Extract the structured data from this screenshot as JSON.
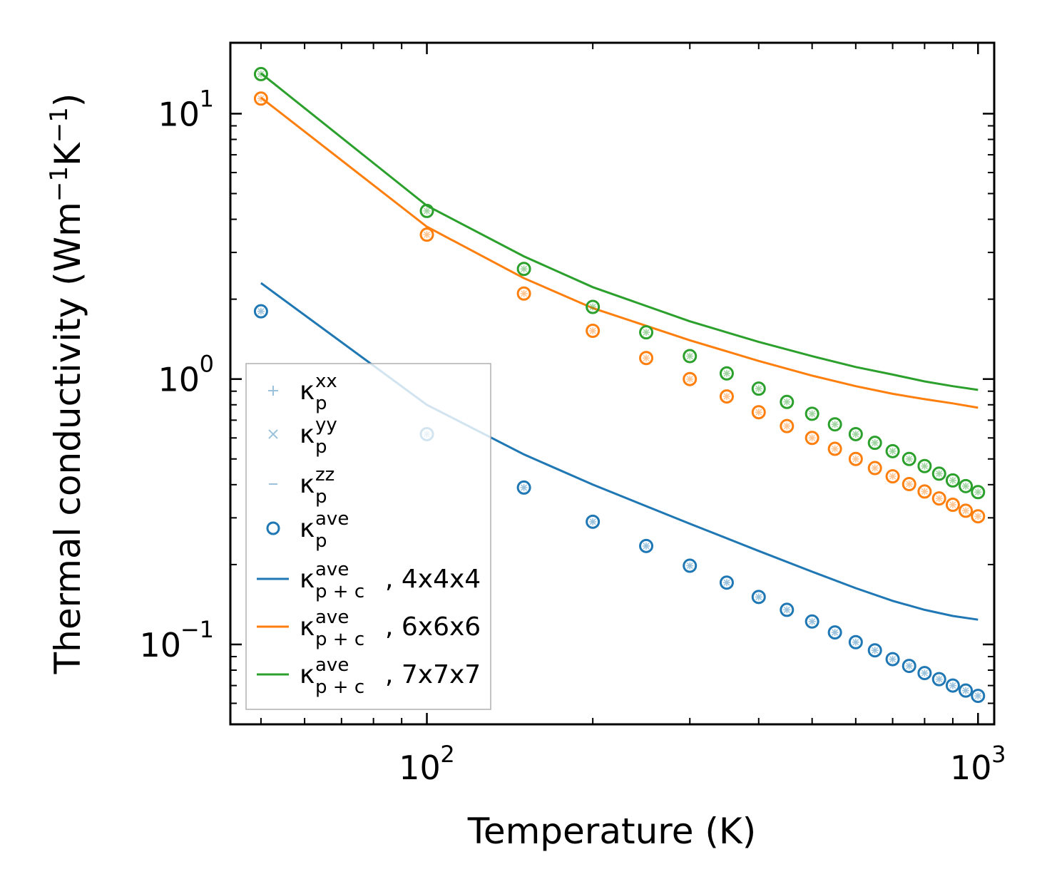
{
  "chart_data": {
    "type": "scatter",
    "xscale": "log",
    "yscale": "log",
    "xlabel": "Temperature (K)",
    "ylabel": "Thermal conductivity (Wm−1K−1)",
    "ylabel_parts": [
      "Thermal conductivity (Wm",
      "−1",
      "K",
      "−1",
      ")"
    ],
    "xlim": [
      44,
      1070
    ],
    "ylim": [
      0.05,
      18.5
    ],
    "x_ticks": [
      {
        "value": 100,
        "base": "10",
        "exp": "2"
      },
      {
        "value": 1000,
        "base": "10",
        "exp": "3"
      }
    ],
    "y_ticks": [
      {
        "value": 0.1,
        "base": "10",
        "exp": "−1"
      },
      {
        "value": 1,
        "base": "10",
        "exp": "0"
      },
      {
        "value": 10,
        "base": "10",
        "exp": "1"
      }
    ],
    "x": [
      50,
      100,
      150,
      200,
      250,
      300,
      350,
      400,
      450,
      500,
      550,
      600,
      650,
      700,
      750,
      800,
      850,
      900,
      950,
      1000
    ],
    "series": [
      {
        "name": "4x4x4",
        "color": "#1f77b4",
        "points": [
          1.8,
          0.62,
          0.39,
          0.29,
          0.235,
          0.198,
          0.171,
          0.151,
          0.135,
          0.122,
          0.111,
          0.102,
          0.095,
          0.088,
          0.083,
          0.078,
          0.074,
          0.07,
          0.067,
          0.064
        ],
        "line_x": [
          50,
          100,
          150,
          200,
          300,
          400,
          500,
          600,
          700,
          800,
          900,
          1000
        ],
        "line": [
          2.3,
          0.8,
          0.52,
          0.4,
          0.285,
          0.225,
          0.188,
          0.163,
          0.146,
          0.135,
          0.128,
          0.124
        ]
      },
      {
        "name": "6x6x6",
        "color": "#ff7f0e",
        "points": [
          11.4,
          3.5,
          2.1,
          1.52,
          1.2,
          1.0,
          0.86,
          0.75,
          0.665,
          0.6,
          0.546,
          0.5,
          0.462,
          0.43,
          0.402,
          0.377,
          0.355,
          0.336,
          0.319,
          0.304
        ],
        "line_x": [
          50,
          100,
          150,
          200,
          300,
          400,
          500,
          600,
          700,
          800,
          900,
          1000
        ],
        "line": [
          11.5,
          3.75,
          2.4,
          1.85,
          1.4,
          1.17,
          1.03,
          0.94,
          0.88,
          0.84,
          0.81,
          0.78
        ]
      },
      {
        "name": "7x7x7",
        "color": "#2ca02c",
        "points": [
          14.1,
          4.3,
          2.6,
          1.87,
          1.5,
          1.22,
          1.05,
          0.92,
          0.82,
          0.74,
          0.675,
          0.62,
          0.575,
          0.535,
          0.5,
          0.47,
          0.44,
          0.415,
          0.395,
          0.375
        ],
        "line_x": [
          50,
          100,
          150,
          200,
          300,
          400,
          500,
          600,
          700,
          800,
          900,
          1000
        ],
        "line": [
          14.2,
          4.5,
          2.9,
          2.22,
          1.65,
          1.38,
          1.22,
          1.11,
          1.04,
          0.98,
          0.94,
          0.91
        ]
      }
    ],
    "legend": {
      "placement": "lower-left",
      "entries": [
        {
          "marker": "+",
          "sym": "κ",
          "sub": "p",
          "sup": "xx",
          "suffix": ""
        },
        {
          "marker": "×",
          "sym": "κ",
          "sub": "p",
          "sup": "yy",
          "suffix": ""
        },
        {
          "marker": "−",
          "sym": "κ",
          "sub": "p",
          "sup": "zz",
          "suffix": ""
        },
        {
          "marker": "o",
          "sym": "κ",
          "sub": "p",
          "sup": "ave",
          "suffix": ""
        },
        {
          "marker": "line",
          "sym": "κ",
          "sub": "p + c",
          "sup": "ave",
          "suffix": ", 4x4x4"
        },
        {
          "marker": "line",
          "sym": "κ",
          "sub": "p + c",
          "sup": "ave",
          "suffix": ", 6x6x6"
        },
        {
          "marker": "line",
          "sym": "κ",
          "sub": "p + c",
          "sup": "ave",
          "suffix": ", 7x7x7"
        }
      ]
    }
  }
}
